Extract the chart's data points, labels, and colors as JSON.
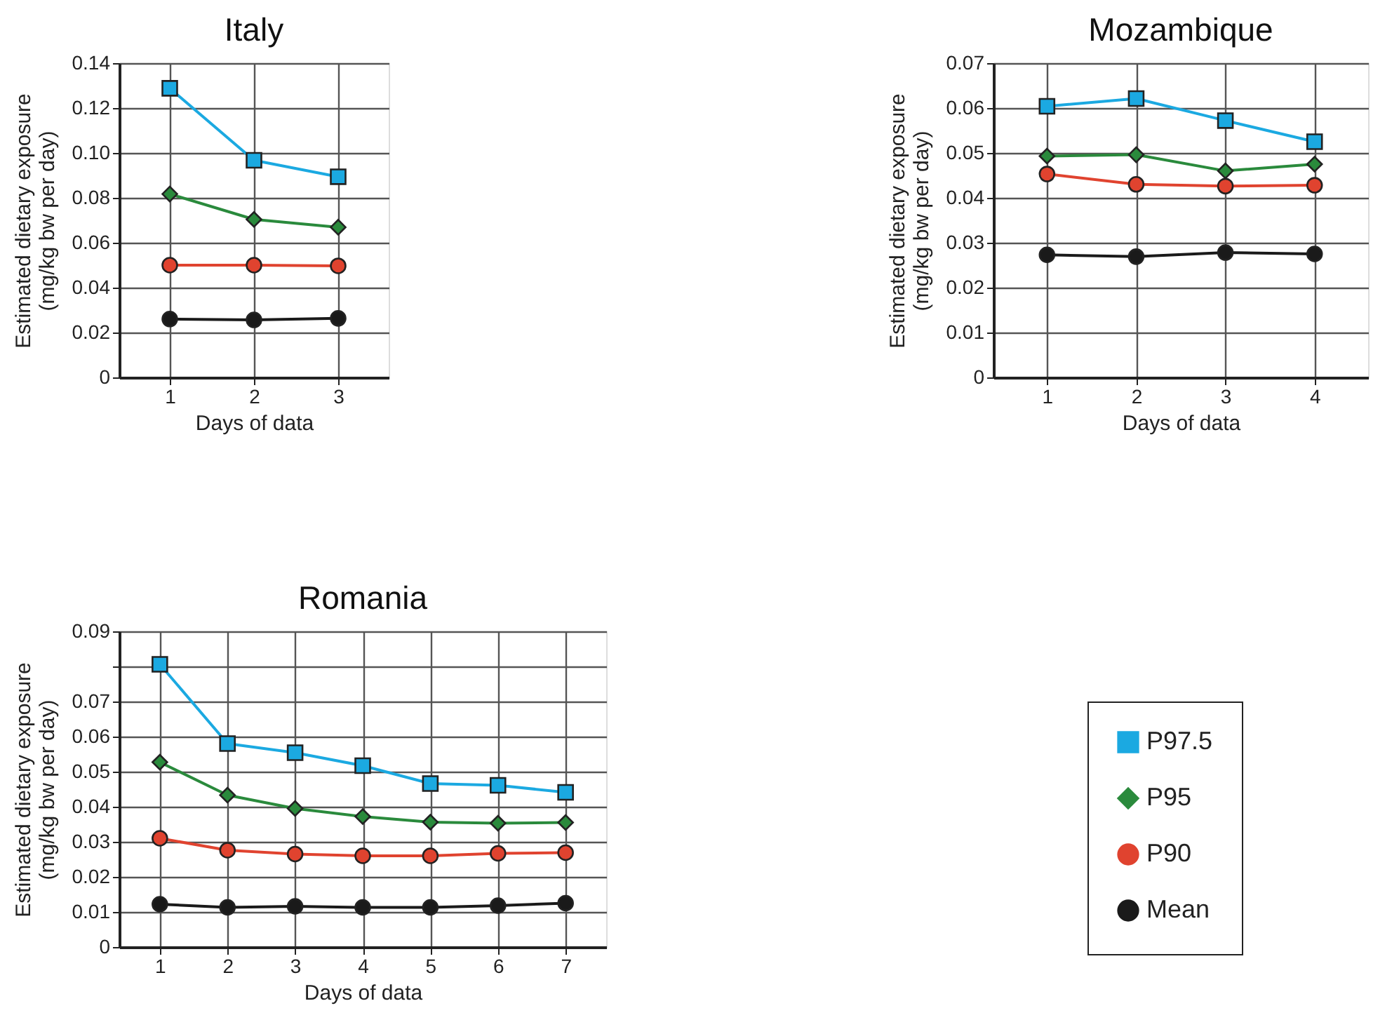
{
  "chart_data": [
    {
      "type": "line",
      "title": "Italy",
      "xlabel": "Days of data",
      "ylabel": "Estimated dietary exposure\n(mg/kg bw per day)",
      "categories": [
        "1",
        "2",
        "3"
      ],
      "ylim": [
        0,
        0.14
      ],
      "yticks": [
        0,
        0.02,
        0.04,
        0.06,
        0.08,
        {
          "value": 0.1,
          "label": "0.10"
        },
        0.12,
        0.14
      ],
      "grid": true,
      "line_style": "solid",
      "legend": "bottom right",
      "series": [
        {
          "name": "P97.5",
          "color": "#1ba9e1",
          "marker": "square",
          "values": [
            0.1288,
            0.0967,
            0.0894
          ]
        },
        {
          "name": "P95",
          "color": "#2a8a3c",
          "marker": "diamond",
          "values": [
            0.0817,
            0.0704,
            0.0669
          ]
        },
        {
          "name": "P90",
          "color": "#e0432f",
          "marker": "circle",
          "values": [
            0.05,
            0.05,
            0.0497
          ]
        },
        {
          "name": "Mean",
          "color": "#1a1a1a",
          "marker": "circle",
          "values": [
            0.026,
            0.0256,
            0.0263
          ]
        }
      ]
    },
    {
      "type": "line",
      "title": "Mozambique",
      "xlabel": "Days of data",
      "ylabel": "Estimated dietary exposure\n(mg/kg bw per day)",
      "categories": [
        "1",
        "2",
        "3",
        "4"
      ],
      "ylim": [
        0,
        0.07
      ],
      "yticks": [
        0,
        0.01,
        0.02,
        0.03,
        0.04,
        0.05,
        0.06,
        0.07
      ],
      "grid": true,
      "line_style": "solid",
      "legend": "bottom right",
      "series": [
        {
          "name": "P97.5",
          "color": "#1ba9e1",
          "marker": "square",
          "values": [
            0.0604,
            0.0621,
            0.0572,
            0.0525
          ]
        },
        {
          "name": "P95",
          "color": "#2a8a3c",
          "marker": "diamond",
          "values": [
            0.0493,
            0.0496,
            0.046,
            0.0475
          ]
        },
        {
          "name": "P90",
          "color": "#e0432f",
          "marker": "circle",
          "values": [
            0.0453,
            0.043,
            0.0426,
            0.0428
          ]
        },
        {
          "name": "Mean",
          "color": "#1a1a1a",
          "marker": "circle",
          "values": [
            0.0273,
            0.0269,
            0.0278,
            0.0275
          ]
        }
      ]
    },
    {
      "type": "line",
      "title": "Romania",
      "xlabel": "Days of data",
      "ylabel": "Estimated dietary exposure\n(mg/kg bw per day)",
      "categories": [
        "1",
        "2",
        "3",
        "4",
        "5",
        "6",
        "7"
      ],
      "ylim": [
        0,
        0.09
      ],
      "yticks": [
        0,
        0.01,
        0.02,
        0.03,
        0.04,
        0.05,
        0.06,
        0.07,
        {
          "value": 0.08,
          "label": null
        },
        0.09
      ],
      "grid": true,
      "line_style": "solid",
      "legend": "bottom right",
      "series": [
        {
          "name": "P97.5",
          "color": "#1ba9e1",
          "marker": "square",
          "values": [
            0.0806,
            0.058,
            0.0554,
            0.0517,
            0.0466,
            0.0461,
            0.0441
          ]
        },
        {
          "name": "P95",
          "color": "#2a8a3c",
          "marker": "diamond",
          "values": [
            0.0527,
            0.0433,
            0.0395,
            0.0372,
            0.0356,
            0.0353,
            0.0355
          ]
        },
        {
          "name": "P90",
          "color": "#e0432f",
          "marker": "circle",
          "values": [
            0.031,
            0.0276,
            0.0265,
            0.026,
            0.026,
            0.0267,
            0.0269
          ]
        },
        {
          "name": "Mean",
          "color": "#1a1a1a",
          "marker": "circle",
          "values": [
            0.0122,
            0.0113,
            0.0116,
            0.0113,
            0.0113,
            0.0118,
            0.0125
          ]
        }
      ]
    }
  ]
}
